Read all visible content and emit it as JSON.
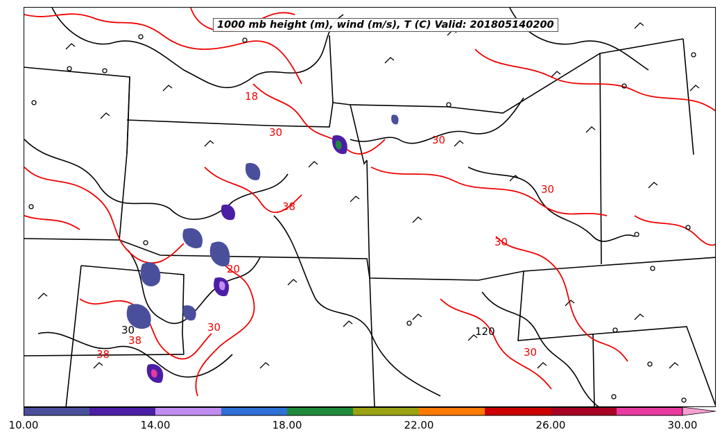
{
  "title": "1000 mb height (m), wind (m/s), T (C) Valid: 201805140200",
  "colorbar": {
    "colors": [
      "#4a4f9c",
      "#4b1ea6",
      "#c08cf0",
      "#2f6fd8",
      "#1f8a3b",
      "#9aa312",
      "#ff7a00",
      "#cc0000",
      "#a80022",
      "#e83aa0",
      "#f6a0d0"
    ],
    "tick_labels": [
      "10.00",
      "14.00",
      "18.00",
      "22.00",
      "26.00",
      "30.00"
    ],
    "tick_values": [
      10,
      14,
      18,
      22,
      26,
      30
    ],
    "min": 10,
    "max": 31
  },
  "contour_labels": {
    "temperature": [
      "18",
      "30",
      "30",
      "38",
      "30",
      "20",
      "30",
      "38",
      "30",
      "30",
      "38"
    ],
    "height": [
      "120",
      "30"
    ]
  },
  "colors": {
    "temperature_contour": "#ee0000",
    "height_contour": "#000000",
    "state_border": "#000000"
  }
}
